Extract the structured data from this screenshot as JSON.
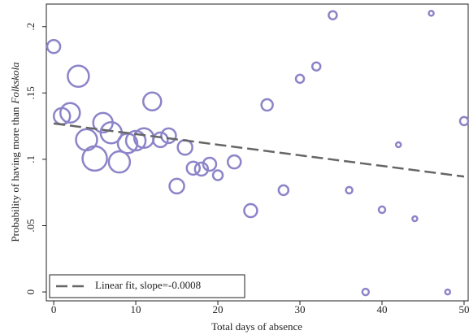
{
  "chart_data": {
    "type": "scatter",
    "xlabel": "Total days of absence",
    "ylabel": "Probability of having more than",
    "ylabel_italic": "Folkskola",
    "xlim": [
      -0.9,
      50.5
    ],
    "ylim": [
      -0.0067,
      0.217
    ],
    "xticks": [
      0,
      10,
      20,
      30,
      40,
      50
    ],
    "yticks": [
      {
        "value": 0,
        "label": "0"
      },
      {
        "value": 0.05,
        "label": ".05"
      },
      {
        "value": 0.1,
        "label": ".1"
      },
      {
        "value": 0.15,
        "label": ".15"
      },
      {
        "value": 0.2,
        "label": ".2"
      }
    ],
    "legend_position": "bottom left",
    "series": [
      {
        "type": "scatter",
        "color": "#8c84c8",
        "x": [
          0,
          1,
          2,
          3,
          4,
          5,
          6,
          7,
          8,
          9,
          10,
          11,
          12,
          13,
          14,
          15,
          16,
          17,
          18,
          19,
          20,
          22,
          24,
          26,
          28,
          30,
          32,
          34,
          36,
          38,
          40,
          42,
          44,
          46,
          48,
          50
        ],
        "values": [
          0.185,
          0.1325,
          0.135,
          0.1626,
          0.1147,
          0.1006,
          0.1276,
          0.12,
          0.098,
          0.112,
          0.114,
          0.116,
          0.1436,
          0.1147,
          0.1178,
          0.0798,
          0.109,
          0.0933,
          0.0926,
          0.0963,
          0.088,
          0.098,
          0.0613,
          0.141,
          0.0767,
          0.1607,
          0.17,
          0.2086,
          0.0767,
          0,
          0.062,
          0.111,
          0.0552,
          0.21,
          0,
          0.1288
        ],
        "sizes": [
          8,
          10,
          12,
          13,
          13,
          15,
          12,
          13,
          13,
          12,
          12,
          12,
          11,
          9,
          9,
          9,
          9,
          8,
          8,
          8,
          6,
          8,
          8,
          7,
          6,
          5,
          5,
          5,
          4,
          4,
          4,
          3,
          3,
          3,
          3,
          5
        ]
      },
      {
        "type": "line",
        "name": "Linear fit, slope=-0.0008",
        "color": "#666666",
        "x": [
          0,
          50
        ],
        "values": [
          0.127,
          0.087
        ]
      }
    ]
  }
}
